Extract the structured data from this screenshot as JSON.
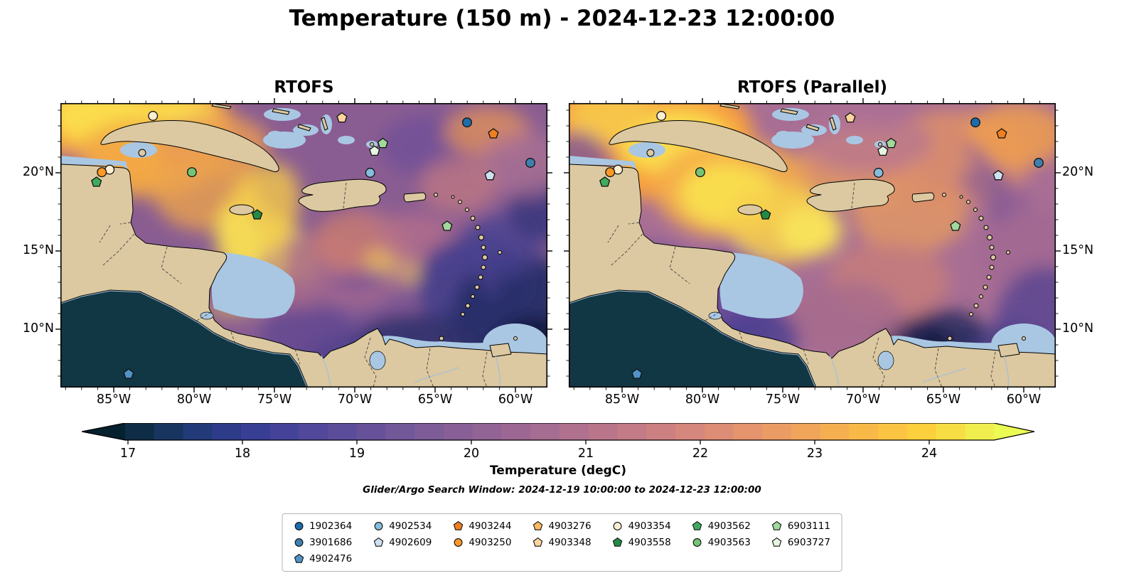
{
  "chart_data": {
    "type": "heatmap",
    "title": "Temperature (150 m) - 2024-12-23 12:00:00",
    "panels": [
      "RTOFS",
      "RTOFS (Parallel)"
    ],
    "variable": "Temperature",
    "depth": "150 m",
    "valid_time": "2024-12-23 12:00:00",
    "region": "Caribbean Sea / Gulf of Mexico",
    "colorbar": {
      "label": "Temperature (degC)",
      "ticks": [
        17,
        18,
        19,
        20,
        21,
        22,
        23,
        24
      ],
      "extend": "both"
    },
    "x_tick_labels": [
      "85°W",
      "80°W",
      "75°W",
      "70°W",
      "65°W",
      "60°W"
    ],
    "y_tick_labels": [
      "20°N",
      "15°N",
      "10°N"
    ],
    "platform_ids": [
      "1902364",
      "3901686",
      "4902476",
      "4902534",
      "4902609",
      "4903244",
      "4903250",
      "4903276",
      "4903348",
      "4903354",
      "4903558",
      "4903562",
      "4903563",
      "6903111",
      "6903727"
    ]
  },
  "search_window": "Glider/Argo Search Window: 2024-12-19 10:00:00 to 2024-12-23 12:00:00",
  "axes": {
    "lon_ticks": [
      {
        "label": "85°W",
        "lon": -85
      },
      {
        "label": "80°W",
        "lon": -80
      },
      {
        "label": "75°W",
        "lon": -75
      },
      {
        "label": "70°W",
        "lon": -70
      },
      {
        "label": "65°W",
        "lon": -65
      },
      {
        "label": "60°W",
        "lon": -60
      }
    ],
    "lat_ticks": [
      {
        "label": "20°N",
        "lat": 20
      },
      {
        "label": "15°N",
        "lat": 15
      },
      {
        "label": "10°N",
        "lat": 10
      }
    ]
  },
  "colorbar": {
    "label": "Temperature (degC)",
    "ticks": [
      17,
      18,
      19,
      20,
      21,
      22,
      23,
      24
    ],
    "vmin": 16.97,
    "vmax": 24.57,
    "under": "#05202e",
    "over": "#ecfb54",
    "stops": [
      {
        "v": 16.97,
        "c": "#0b2839"
      },
      {
        "v": 17.5,
        "c": "#1d3a70"
      },
      {
        "v": 18,
        "c": "#333c92"
      },
      {
        "v": 18.5,
        "c": "#4c469b"
      },
      {
        "v": 19,
        "c": "#62509b"
      },
      {
        "v": 19.5,
        "c": "#785a98"
      },
      {
        "v": 20,
        "c": "#8d6196"
      },
      {
        "v": 20.5,
        "c": "#a06a92"
      },
      {
        "v": 21,
        "c": "#b3738d"
      },
      {
        "v": 21.5,
        "c": "#c67d85"
      },
      {
        "v": 22,
        "c": "#d8887b"
      },
      {
        "v": 22.5,
        "c": "#e7966b"
      },
      {
        "v": 23,
        "c": "#f2a857"
      },
      {
        "v": 23.5,
        "c": "#fabc47"
      },
      {
        "v": 24,
        "c": "#fcd23c"
      },
      {
        "v": 24.57,
        "c": "#edf653"
      }
    ]
  },
  "legend": {
    "columns": [
      3,
      2,
      2,
      2,
      2,
      2,
      2
    ],
    "items": [
      {
        "id": "1902364",
        "marker": "circle",
        "color": "#1d6cab"
      },
      {
        "id": "3901686",
        "marker": "circle",
        "color": "#3f7fae"
      },
      {
        "id": "4902476",
        "marker": "pentagon",
        "color": "#4f93c8"
      },
      {
        "id": "4902534",
        "marker": "circle",
        "color": "#86bcdc"
      },
      {
        "id": "4902609",
        "marker": "pentagon",
        "color": "#cfe1f0"
      },
      {
        "id": "4903244",
        "marker": "pentagon",
        "color": "#ef8022"
      },
      {
        "id": "4903250",
        "marker": "circle",
        "color": "#fd9827"
      },
      {
        "id": "4903276",
        "marker": "pentagon",
        "color": "#fdb863"
      },
      {
        "id": "4903348",
        "marker": "pentagon",
        "color": "#fdd49e"
      },
      {
        "id": "4903354",
        "marker": "circle",
        "color": "#fdeed2"
      },
      {
        "id": "4903558",
        "marker": "pentagon",
        "color": "#238b45"
      },
      {
        "id": "4903562",
        "marker": "pentagon",
        "color": "#41ab5d"
      },
      {
        "id": "4903563",
        "marker": "circle",
        "color": "#74c476"
      },
      {
        "id": "6903111",
        "marker": "pentagon",
        "color": "#a1d99b"
      },
      {
        "id": "6903727",
        "marker": "pentagon",
        "color": "#e5f5e0"
      }
    ]
  },
  "map_markers": [
    {
      "marker": "circle",
      "color": "#fdeed2",
      "x": 19.0,
      "y": 4.5
    },
    {
      "marker": "circle",
      "color": "#fdeed2",
      "x": 10.1,
      "y": 23.4
    },
    {
      "marker": "circle",
      "color": "#fd9827",
      "x": 8.5,
      "y": 24.3
    },
    {
      "marker": "pentagon",
      "color": "#41ab5d",
      "x": 7.4,
      "y": 27.8
    },
    {
      "marker": "circle",
      "color": "#74c476",
      "x": 27.0,
      "y": 24.3
    },
    {
      "marker": "pentagon",
      "color": "#fdd49e",
      "x": 57.8,
      "y": 5.2
    },
    {
      "marker": "pentagon",
      "color": "#a1d99b",
      "x": 66.2,
      "y": 14.2
    },
    {
      "marker": "pentagon",
      "color": "#e5f5e0",
      "x": 64.5,
      "y": 16.9
    },
    {
      "marker": "circle",
      "color": "#86bcdc",
      "x": 63.6,
      "y": 24.5
    },
    {
      "marker": "circle",
      "color": "#1d6cab",
      "x": 83.5,
      "y": 6.8
    },
    {
      "marker": "pentagon",
      "color": "#ef8022",
      "x": 88.9,
      "y": 10.8
    },
    {
      "marker": "circle",
      "color": "#3f7fae",
      "x": 96.5,
      "y": 21.0
    },
    {
      "marker": "pentagon",
      "color": "#cfe1f0",
      "x": 88.2,
      "y": 25.5
    },
    {
      "marker": "pentagon",
      "color": "#238b45",
      "x": 40.4,
      "y": 39.3
    },
    {
      "marker": "pentagon",
      "color": "#a1d99b",
      "x": 79.4,
      "y": 43.3
    },
    {
      "marker": "pentagon",
      "color": "#4f93c8",
      "x": 14.0,
      "y": 95.3
    }
  ],
  "map_colors": {
    "land": "#dcc9a1",
    "shallow": "#a9c7e3",
    "pacific": "#123744",
    "coastline": "#000000"
  }
}
